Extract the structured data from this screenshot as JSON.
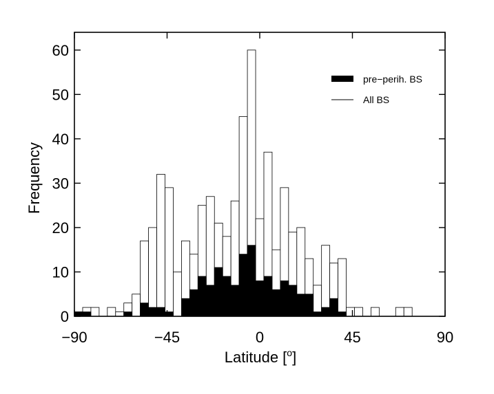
{
  "chart_data": {
    "type": "bar",
    "xlabel": "Latitude [",
    "xlabel_superscript": "o",
    "xlabel_suffix": "]",
    "ylabel": "Frequency",
    "xlim": [
      -90,
      90
    ],
    "ylim": [
      0,
      64
    ],
    "xticks": [
      -90,
      -45,
      0,
      45,
      90
    ],
    "xtick_labels": [
      "−90",
      "−45",
      "0",
      "45",
      "90"
    ],
    "yticks": [
      0,
      10,
      20,
      30,
      40,
      50,
      60
    ],
    "ytick_labels": [
      "0",
      "10",
      "20",
      "30",
      "40",
      "50",
      "60"
    ],
    "bin_width": 4,
    "bin_edges_start": -90,
    "grid": false,
    "legend_position": "top-right",
    "series": [
      {
        "name": "All BS",
        "style": "open",
        "color": "#000000",
        "values": [
          1,
          2,
          2,
          0,
          2,
          1,
          3,
          5,
          17,
          20,
          32,
          29,
          10,
          17,
          14,
          25,
          27,
          21,
          18,
          26,
          45,
          60,
          22,
          37,
          15,
          29,
          19,
          20,
          13,
          7,
          16,
          12,
          13,
          2,
          2,
          0,
          2,
          0,
          0,
          2,
          2,
          0,
          0,
          0,
          0
        ]
      },
      {
        "name": "pre−perih. BS",
        "style": "filled",
        "color": "#000000",
        "values": [
          1,
          1,
          0,
          0,
          0,
          0,
          1,
          0,
          3,
          2,
          2,
          1,
          0,
          4,
          6,
          9,
          7,
          11,
          9,
          7,
          14,
          16,
          8,
          9,
          6,
          8,
          7,
          5,
          5,
          1,
          2,
          4,
          1,
          0,
          0,
          0,
          0,
          0,
          0,
          0,
          0,
          0,
          0,
          0,
          0
        ]
      }
    ],
    "legend": [
      {
        "label": "pre−perih. BS",
        "style": "filled"
      },
      {
        "label": "All BS",
        "style": "line"
      }
    ]
  }
}
